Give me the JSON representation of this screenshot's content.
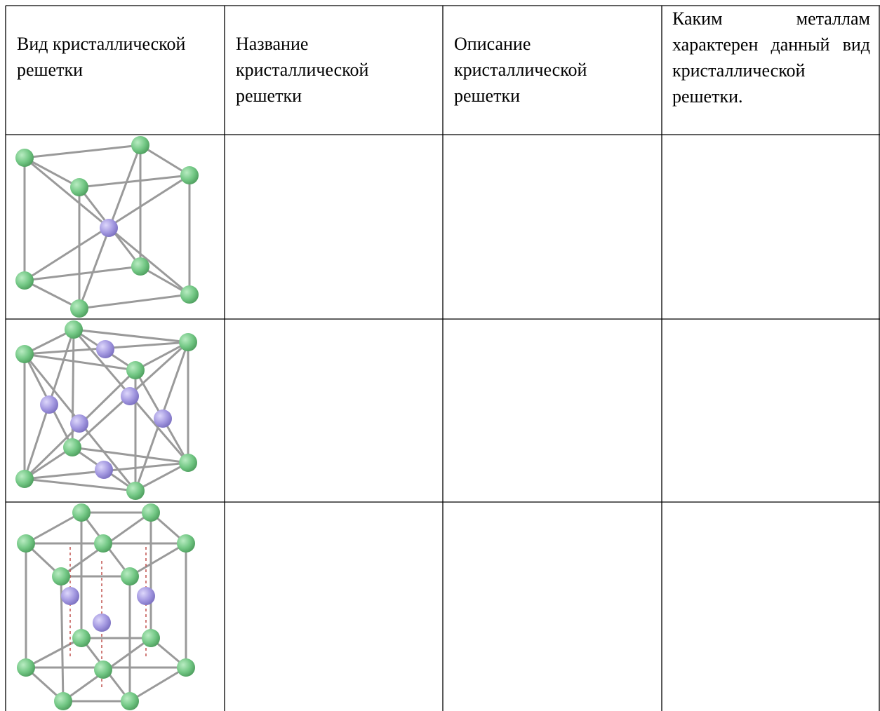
{
  "table": {
    "header": [
      "Вид кристаллической решетки",
      "Название кристаллической решетки",
      "Описание кристаллической решетки",
      "Каким металлам характерен данный вид кристаллической решетки."
    ]
  }
}
